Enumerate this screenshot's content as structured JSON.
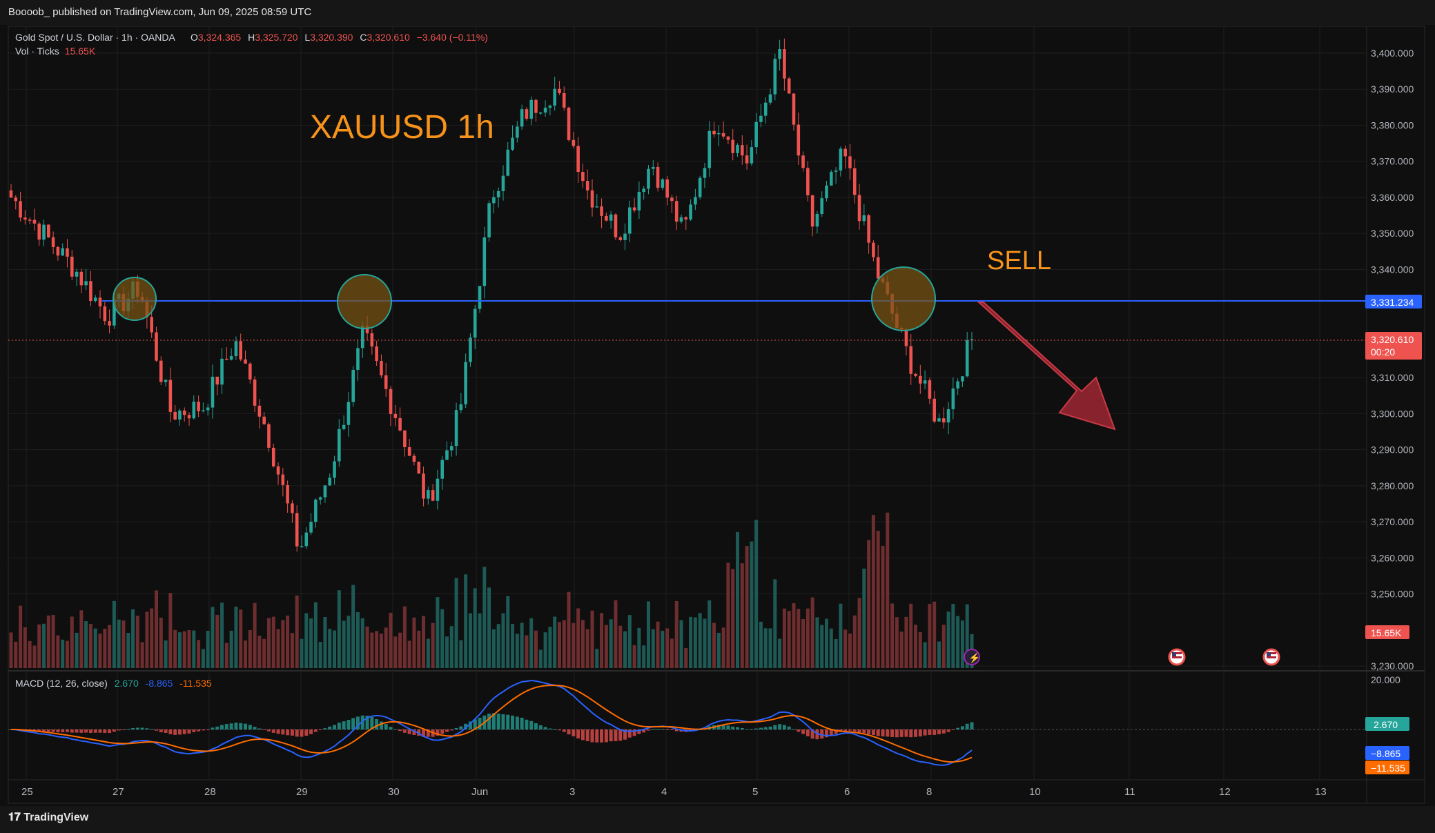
{
  "header": {
    "publish_line": "Boooob_ published on TradingView.com, Jun 09, 2025 08:59 UTC"
  },
  "legend": {
    "symbol": "Gold Spot / U.S. Dollar · 1h · OANDA",
    "o_label": "O",
    "o_value": "3,324.365",
    "h_label": "H",
    "h_value": "3,325.720",
    "l_label": "L",
    "l_value": "3,320.390",
    "c_label": "C",
    "c_value": "3,320.610",
    "change": "−3.640 (−0.11%)",
    "vol_label": "Vol · Ticks",
    "vol_value": "15.65K"
  },
  "annotations": {
    "title": "XAUUSD  1h",
    "sell": "SELL"
  },
  "price_axis": {
    "ticks": [
      "3,400.000",
      "3,390.000",
      "3,380.000",
      "3,370.000",
      "3,360.000",
      "3,350.000",
      "3,340.000",
      "3,310.000",
      "3,300.000",
      "3,290.000",
      "3,280.000",
      "3,270.000",
      "3,260.000",
      "3,250.000",
      "3,230.000"
    ],
    "level_label": "3,331.234",
    "last_price_label": "3,320.610",
    "countdown": "00:20",
    "volume_label": "15.65K"
  },
  "macd": {
    "title": "MACD (12, 26, close)",
    "hist_value": "2.670",
    "macd_value": "-8.865",
    "signal_value": "-11.535",
    "axis_top": "20.000",
    "hist_label": "2.670",
    "macd_label": "−8.865",
    "signal_label": "−11.535"
  },
  "time_axis": {
    "labels": [
      "25",
      "27",
      "28",
      "29",
      "30",
      "Jun",
      "3",
      "4",
      "5",
      "6",
      "8",
      "10",
      "11",
      "12",
      "13"
    ]
  },
  "footer": {
    "brand": "TradingView"
  },
  "colors": {
    "background": "#0f0f0f",
    "up": "#26a69a",
    "down": "#ef5350",
    "level_line": "#2962ff",
    "annotation": "#f7931a",
    "arrow": "#b22a36",
    "macd_line": "#2962ff",
    "signal_line": "#ff6d00"
  },
  "chart_data": {
    "type": "candlestick",
    "symbol": "XAUUSD",
    "timeframe": "1h",
    "ylim": [
      3227,
      3404
    ],
    "level": 3331.234,
    "last_close": 3320.61,
    "anchors": [
      {
        "date": "May 23",
        "price": 3360
      },
      {
        "date": "May 24",
        "price": 3350
      },
      {
        "date": "May 26",
        "price": 3340
      },
      {
        "date": "May 26",
        "price": 3327
      },
      {
        "date": "May 27",
        "price": 3335
      },
      {
        "date": "May 27",
        "price": 3300
      },
      {
        "date": "May 28",
        "price": 3302
      },
      {
        "date": "May 28",
        "price": 3320
      },
      {
        "date": "May 29",
        "price": 3295
      },
      {
        "date": "May 29",
        "price": 3262
      },
      {
        "date": "May 29",
        "price": 3285
      },
      {
        "date": "May 30",
        "price": 3322
      },
      {
        "date": "May 30",
        "price": 3300
      },
      {
        "date": "May 30",
        "price": 3275
      },
      {
        "date": "Jun 1",
        "price": 3300
      },
      {
        "date": "Jun 2",
        "price": 3360
      },
      {
        "date": "Jun 2",
        "price": 3383
      },
      {
        "date": "Jun 3",
        "price": 3390
      },
      {
        "date": "Jun 3",
        "price": 3362
      },
      {
        "date": "Jun 3",
        "price": 3350
      },
      {
        "date": "Jun 4",
        "price": 3370
      },
      {
        "date": "Jun 4",
        "price": 3350
      },
      {
        "date": "Jun 4",
        "price": 3382
      },
      {
        "date": "Jun 5",
        "price": 3370
      },
      {
        "date": "Jun 5",
        "price": 3400
      },
      {
        "date": "Jun 5",
        "price": 3352
      },
      {
        "date": "Jun 6",
        "price": 3372
      },
      {
        "date": "Jun 6",
        "price": 3340
      },
      {
        "date": "Jun 6",
        "price": 3316
      },
      {
        "date": "Jun 8",
        "price": 3297
      },
      {
        "date": "Jun 8",
        "price": 3320.61
      }
    ],
    "volume_last": "15.65K",
    "macd": {
      "params": "12, 26, close",
      "histogram": 2.67,
      "macd": -8.865,
      "signal": -11.535,
      "ylim": [
        -15,
        20
      ]
    }
  }
}
